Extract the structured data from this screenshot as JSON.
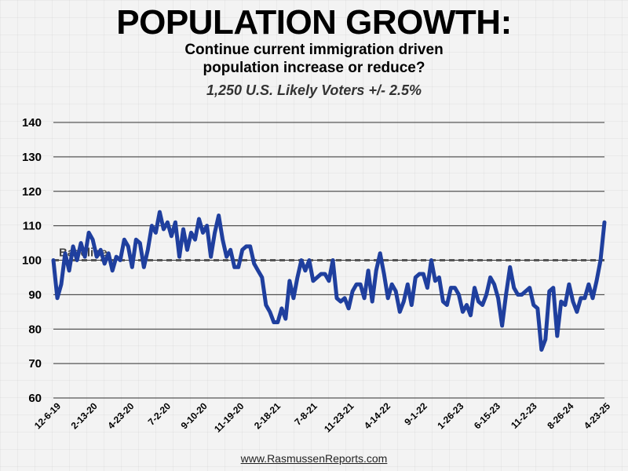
{
  "title": "POPULATION GROWTH:",
  "subtitle_line1": "Continue current immigration driven",
  "subtitle_line2": "population increase or reduce?",
  "sample": "1,250 U.S. Likely Voters +/- 2.5%",
  "source": "www.RasmussenReports.com",
  "colors": {
    "line": "#1f3f9e",
    "baseline": "#555555",
    "grid": "#333333"
  },
  "chart_data": {
    "type": "line",
    "ylim": [
      60,
      140
    ],
    "y_ticks": [
      60,
      70,
      80,
      90,
      100,
      110,
      120,
      130,
      140
    ],
    "x_tick_labels": [
      "12-6-19",
      "2-13-20",
      "4-23-20",
      "7-2-20",
      "9-10-20",
      "11-19-20",
      "2-18-21",
      "7-8-21",
      "11-23-21",
      "4-14-22",
      "9-1-22",
      "1-26-23",
      "6-15-23",
      "11-2-23",
      "8-26-24",
      "4-23-25"
    ],
    "baseline": {
      "value": 100,
      "label": "Baseline"
    },
    "series": [
      {
        "values": [
          100,
          89,
          93,
          102,
          97,
          104,
          100,
          105,
          101,
          108,
          106,
          101,
          103,
          99,
          102,
          97,
          101,
          100,
          106,
          104,
          98,
          106,
          105,
          98,
          103,
          110,
          108,
          114,
          109,
          111,
          107,
          111,
          101,
          109,
          103,
          108,
          106,
          112,
          108,
          110,
          101,
          108,
          113,
          106,
          101,
          103,
          98,
          98,
          103,
          104,
          104,
          99,
          97,
          95,
          87,
          85,
          82,
          82,
          86,
          83,
          94,
          89,
          95,
          100,
          97,
          100,
          94,
          95,
          96,
          96,
          94,
          100,
          89,
          88,
          89,
          86,
          91,
          93,
          93,
          89,
          97,
          88,
          97,
          102,
          96,
          89,
          93,
          91,
          85,
          88,
          93,
          87,
          95,
          96,
          96,
          92,
          100,
          94,
          95,
          88,
          87,
          92,
          92,
          90,
          85,
          87,
          84,
          92,
          88,
          87,
          90,
          95,
          93,
          89,
          81,
          90,
          98,
          92,
          90,
          90,
          91,
          92,
          87,
          86,
          74,
          77,
          91,
          92,
          78,
          88,
          87,
          93,
          88,
          85,
          89,
          89,
          93,
          89,
          94,
          100,
          111
        ]
      }
    ]
  }
}
